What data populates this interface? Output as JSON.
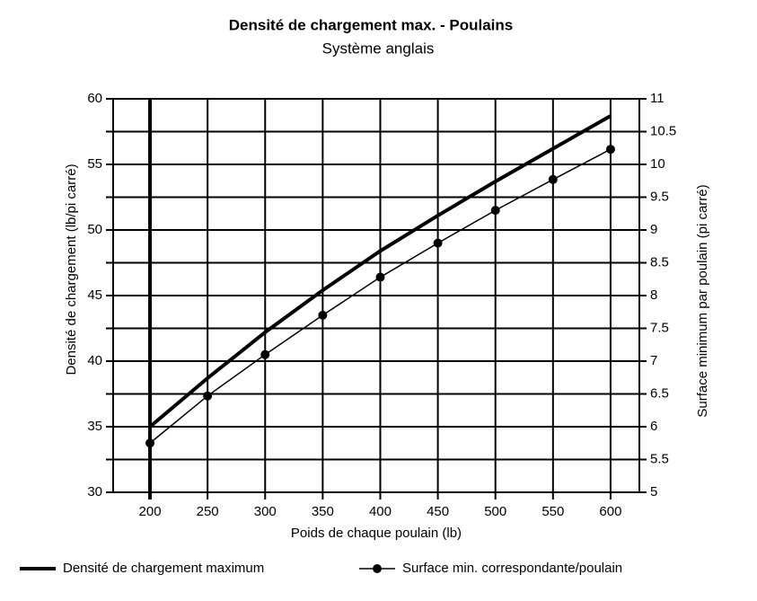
{
  "chart_data": {
    "type": "line",
    "title": "Densité de chargement max. - Poulains",
    "subtitle": "Système anglais",
    "x_label": "Poids de chaque poulain (lb)",
    "y_label": "Densité de chargement (lb/pi carré)",
    "y2_label": "Surface minimum par poulain (pi carré)",
    "x": [
      200,
      250,
      300,
      350,
      400,
      450,
      500,
      550,
      600
    ],
    "series": [
      {
        "name": "Densité de chargement maximum",
        "color": "#000000",
        "values": [
          35,
          38.7,
          42.2,
          45.4,
          48.4,
          51.1,
          53.7,
          56.2,
          58.7
        ]
      },
      {
        "name": "Surface min. correspondante/poulain",
        "color": "#000000",
        "axis": "y2",
        "marker": "circle",
        "values": [
          5.75,
          6.47,
          7.1,
          7.7,
          8.28,
          8.8,
          9.3,
          9.77,
          10.23
        ]
      }
    ],
    "xlim": [
      168,
      625
    ],
    "xticks": [
      200,
      250,
      300,
      350,
      400,
      450,
      500,
      550,
      600
    ],
    "ylim": [
      30,
      60
    ],
    "yticks": [
      30,
      35,
      40,
      45,
      50,
      55,
      60
    ],
    "y2lim": [
      5,
      11
    ],
    "y2ticks": [
      5,
      5.5,
      6,
      6.5,
      7,
      7.5,
      8,
      8.5,
      9,
      9.5,
      10,
      10.5,
      11
    ],
    "grid": true,
    "legend": "bottom"
  }
}
